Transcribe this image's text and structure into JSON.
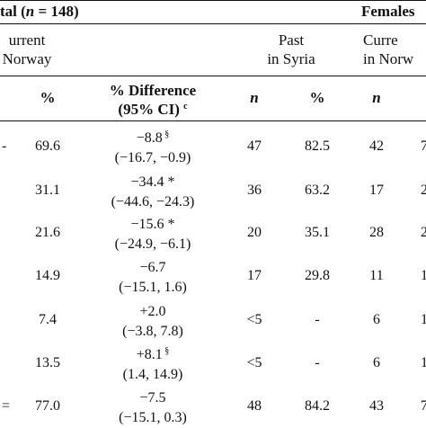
{
  "header": {
    "total_prefix": "tal (",
    "total_n": "n",
    "total_suffix": " = 148)",
    "females": "Females",
    "current_line1": "urrent",
    "current_line2": "Norway",
    "past_line1": "Past",
    "past_line2": "in Syria",
    "current2_line1": "Curre",
    "current2_line2": "in Norw"
  },
  "columns": {
    "pct": "%",
    "diff_line1": "% Difference",
    "diff_line2_prefix": "(95% CI) ",
    "diff_sup": "c",
    "n1": "n",
    "pct2": "%",
    "n2": "n"
  },
  "rows": [
    {
      "edge": "-",
      "pct": "69.6",
      "diff": "−8.8",
      "diff_sup": "§",
      "ci": "(−16.7, −0.9)",
      "n1": "47",
      "pct2": "82.5",
      "n2": "42",
      "cut": "7"
    },
    {
      "edge": "",
      "pct": "31.1",
      "diff": "−34.4 *",
      "diff_sup": "",
      "ci": "(−44.6, −24.3)",
      "n1": "36",
      "pct2": "63.2",
      "n2": "17",
      "cut": "2"
    },
    {
      "edge": "",
      "pct": "21.6",
      "diff": "−15.6 *",
      "diff_sup": "",
      "ci": "(−24.9, −6.1)",
      "n1": "20",
      "pct2": "35.1",
      "n2": "28",
      "cut": "2"
    },
    {
      "edge": "",
      "pct": "14.9",
      "diff": "−6.7",
      "diff_sup": "",
      "ci": "(−15.1, 1.6)",
      "n1": "17",
      "pct2": "29.8",
      "n2": "11",
      "cut": "1"
    },
    {
      "edge": "",
      "pct": "7.4",
      "diff": "+2.0",
      "diff_sup": "",
      "ci": "(−3.8, 7.8)",
      "n1": "<5",
      "pct2": "-",
      "n2": "6",
      "cut": "1"
    },
    {
      "edge": "",
      "pct": "13.5",
      "diff": "+8.1",
      "diff_sup": "§",
      "ci": "(1.4, 14.9)",
      "n1": "<5",
      "pct2": "-",
      "n2": "6",
      "cut": "1"
    },
    {
      "edge": "=",
      "pct": "77.0",
      "diff": "−7.5",
      "diff_sup": "",
      "ci": "(−15.1, 0.3)",
      "n1": "48",
      "pct2": "84.2",
      "n2": "43",
      "cut": "7"
    }
  ]
}
